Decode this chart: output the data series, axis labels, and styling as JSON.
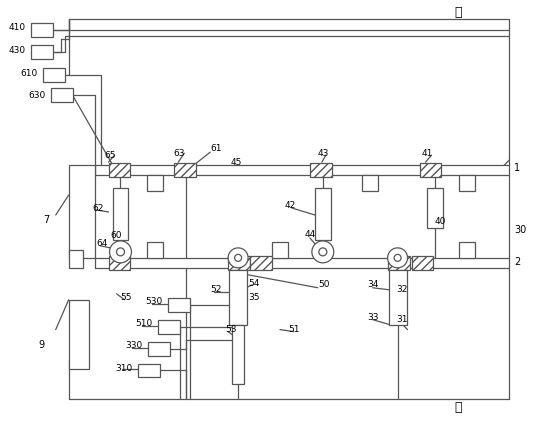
{
  "bg_color": "#ffffff",
  "line_color": "#555555",
  "text_color": "#000000",
  "fig_width": 5.44,
  "fig_height": 4.24,
  "dpi": 100
}
